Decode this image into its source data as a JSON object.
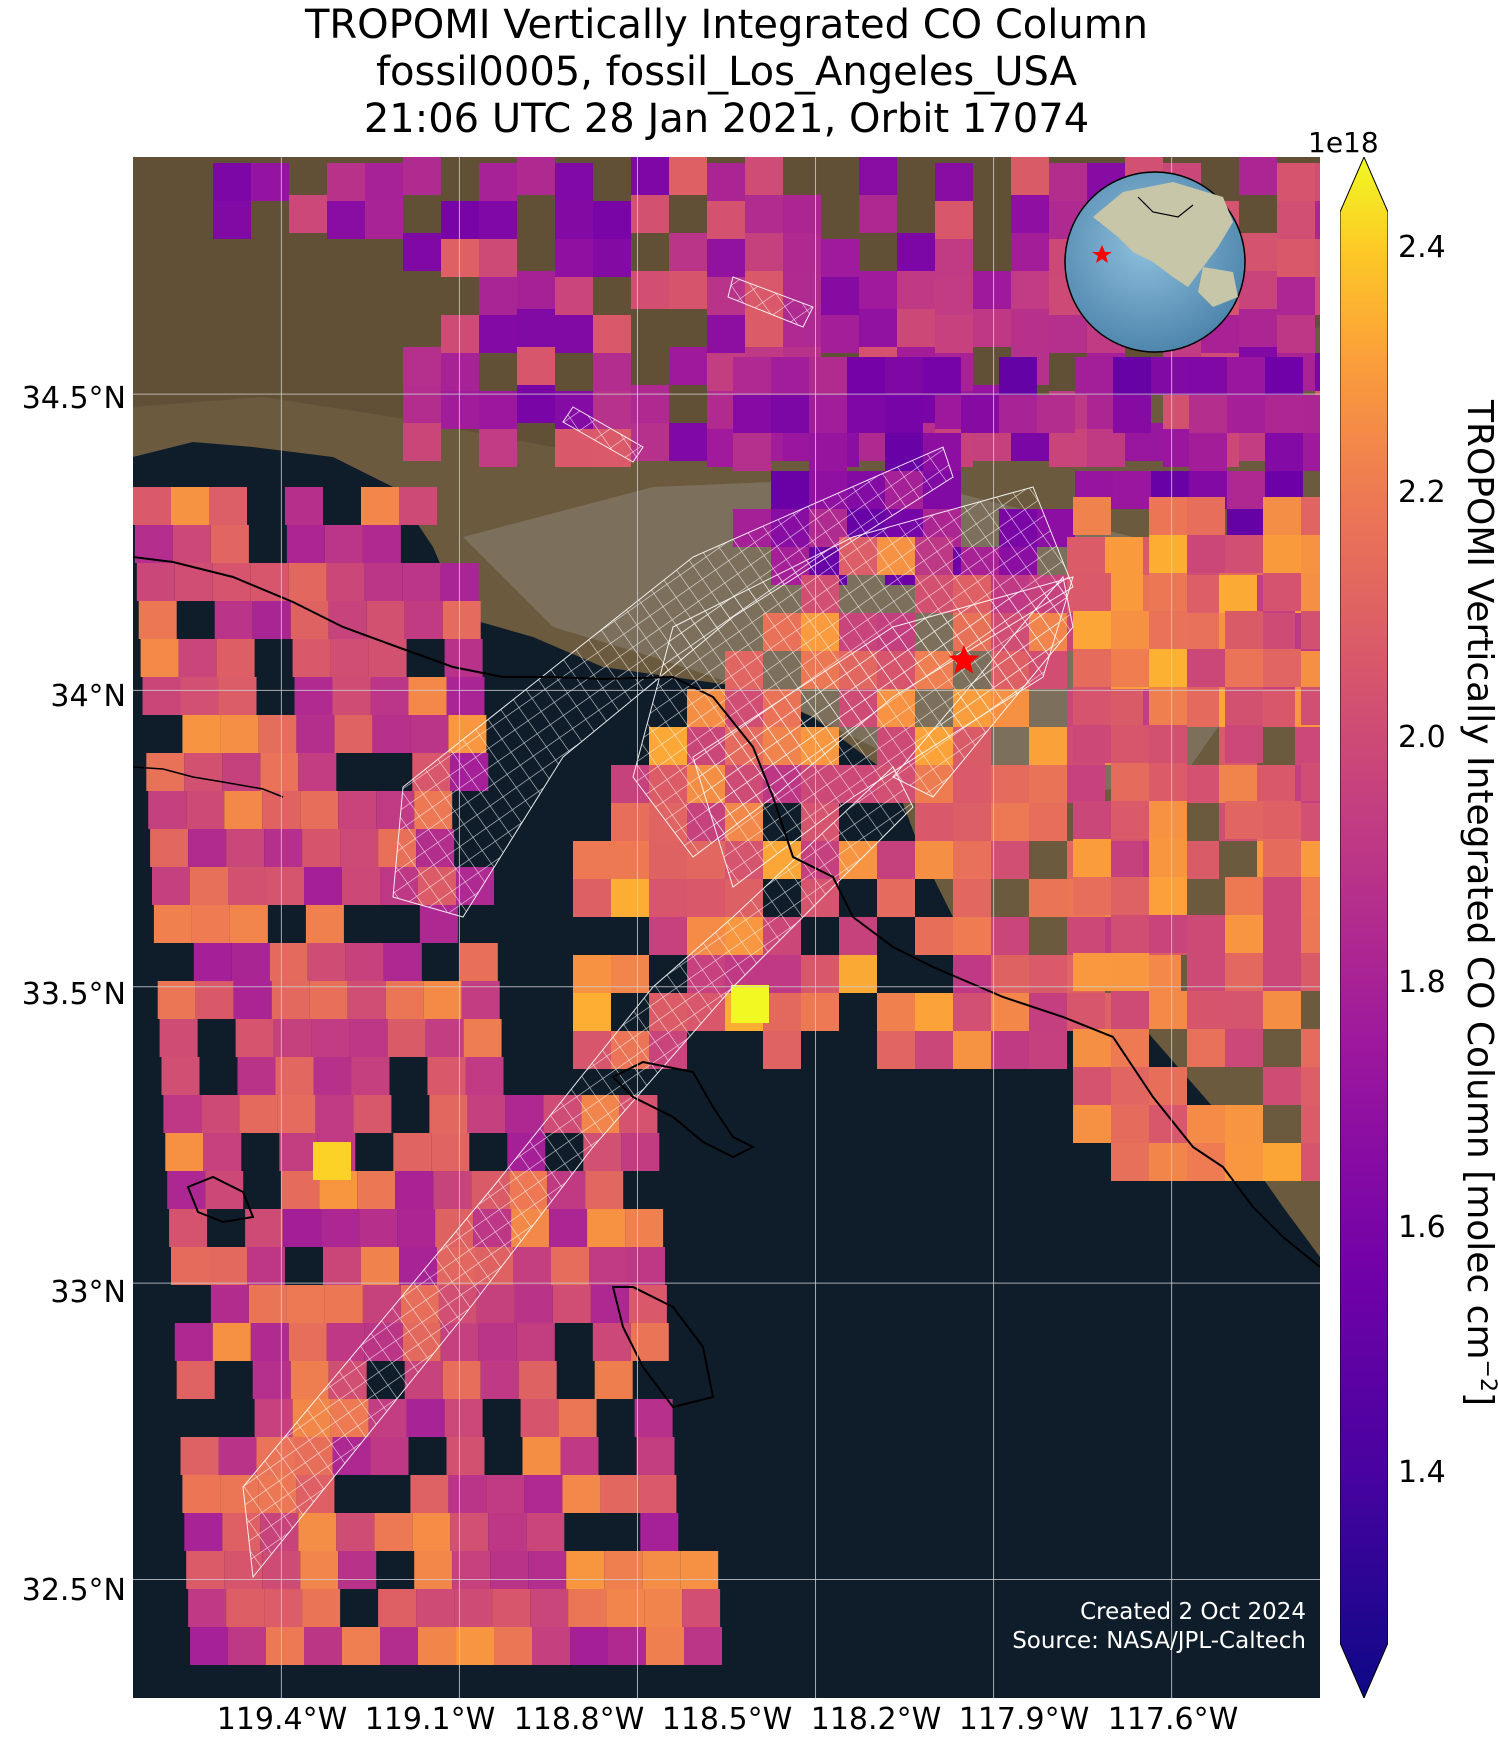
{
  "title": {
    "line1": "TROPOMI Vertically Integrated CO Column",
    "line2": "fossil0005, fossil_Los_Angeles_USA",
    "line3": "21:06 UTC 28 Jan 2021, Orbit 17074"
  },
  "map": {
    "lon_range": [
      -119.65,
      -117.65
    ],
    "lat_range": [
      32.3,
      34.9
    ],
    "lat_ticks": [
      "34.5°N",
      "34°N",
      "33.5°N",
      "33°N",
      "32.5°N"
    ],
    "lon_ticks": [
      "119.4°W",
      "119.1°W",
      "118.8°W",
      "118.5°W",
      "118.2°W",
      "117.9°W",
      "117.6°W"
    ],
    "target": {
      "name": "fossil_Los_Angeles_USA",
      "lon": -118.25,
      "lat": 34.05,
      "marker": "red-star"
    },
    "inset": "globe-locator"
  },
  "colorbar": {
    "label": "TROPOMI Vertically Integrated CO Column [molec cm",
    "label_exp": "−2",
    "label_close": "]",
    "multiplier": "1e18",
    "ticks": [
      "2.4",
      "2.2",
      "2.0",
      "1.8",
      "1.6",
      "1.4"
    ],
    "range": [
      1.25,
      2.45
    ],
    "colormap": "plasma",
    "extend": "both"
  },
  "credits": {
    "created": "Created 2 Oct 2024",
    "source": "Source: NASA/JPL-Caltech"
  },
  "colors": {
    "ocean": "#0f1d2b",
    "land": "#6b5a3d",
    "marker": "#ff0000",
    "grid": "#cfcfcf"
  }
}
